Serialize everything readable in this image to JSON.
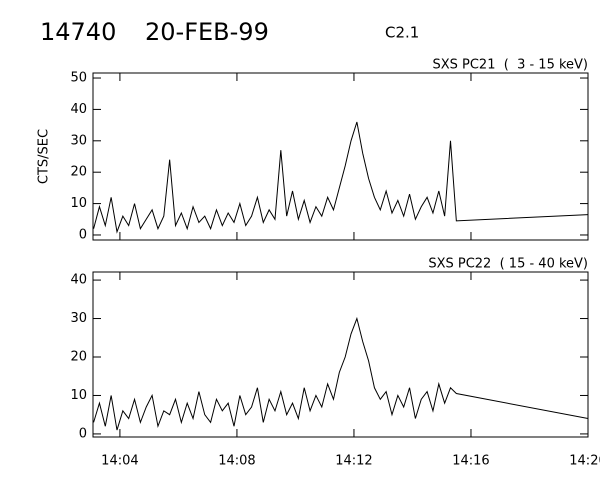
{
  "header": {
    "id": "14740",
    "date": "20-FEB-99",
    "class": "C2.1"
  },
  "chart_data": [
    {
      "type": "line",
      "title": "SXS PC21  (  3 - 15 keV)",
      "ylabel": "CTS/SEC",
      "color": "#000000",
      "x": [
        3.1,
        3.3,
        3.5,
        3.7,
        3.9,
        4.1,
        4.3,
        4.5,
        4.7,
        4.9,
        5.1,
        5.3,
        5.5,
        5.7,
        5.9,
        6.1,
        6.3,
        6.5,
        6.7,
        6.9,
        7.1,
        7.3,
        7.5,
        7.7,
        7.9,
        8.1,
        8.3,
        8.5,
        8.7,
        8.9,
        9.1,
        9.3,
        9.5,
        9.7,
        9.9,
        10.1,
        10.3,
        10.5,
        10.7,
        10.9,
        11.1,
        11.3,
        11.5,
        11.7,
        11.9,
        12.1,
        12.3,
        12.5,
        12.7,
        12.9,
        13.1,
        13.3,
        13.5,
        13.7,
        13.9,
        14.1,
        14.3,
        14.5,
        14.7,
        14.9,
        15.1,
        15.3,
        15.5,
        20
      ],
      "values": [
        2,
        9,
        3,
        12,
        1,
        6,
        3,
        10,
        2,
        5,
        8,
        2,
        6,
        24,
        3,
        7,
        2,
        9,
        4,
        6,
        2,
        8,
        3,
        7,
        4,
        10,
        3,
        6,
        12,
        4,
        8,
        5,
        27,
        6,
        14,
        5,
        11,
        4,
        9,
        6,
        12,
        8,
        15,
        22,
        30,
        36,
        26,
        18,
        12,
        8,
        14,
        7,
        11,
        6,
        13,
        5,
        9,
        12,
        7,
        14,
        6,
        30,
        4.5,
        6.5
      ],
      "xlim": [
        3.08,
        20
      ],
      "ylim": [
        -1.6,
        51.6
      ],
      "xticks": [
        {
          "value": 4,
          "label": "14:04"
        },
        {
          "value": 8,
          "label": "14:08"
        },
        {
          "value": 12,
          "label": "14:12"
        },
        {
          "value": 16,
          "label": "14:16"
        },
        {
          "value": 20,
          "label": "14:20"
        }
      ],
      "yticks": [
        0,
        10,
        20,
        30,
        40,
        50
      ],
      "show_xtick_labels": false
    },
    {
      "type": "line",
      "title": "SXS PC22  ( 15 - 40 keV)",
      "color": "#000000",
      "x": [
        3.1,
        3.3,
        3.5,
        3.7,
        3.9,
        4.1,
        4.3,
        4.5,
        4.7,
        4.9,
        5.1,
        5.3,
        5.5,
        5.7,
        5.9,
        6.1,
        6.3,
        6.5,
        6.7,
        6.9,
        7.1,
        7.3,
        7.5,
        7.7,
        7.9,
        8.1,
        8.3,
        8.5,
        8.7,
        8.9,
        9.1,
        9.3,
        9.5,
        9.7,
        9.9,
        10.1,
        10.3,
        10.5,
        10.7,
        10.9,
        11.1,
        11.3,
        11.5,
        11.7,
        11.9,
        12.1,
        12.3,
        12.5,
        12.7,
        12.9,
        13.1,
        13.3,
        13.5,
        13.7,
        13.9,
        14.1,
        14.3,
        14.5,
        14.7,
        14.9,
        15.1,
        15.3,
        15.5,
        20
      ],
      "values": [
        3,
        8,
        2,
        10,
        1,
        6,
        4,
        9,
        3,
        7,
        10,
        2,
        6,
        5,
        9,
        3,
        8,
        4,
        11,
        5,
        3,
        9,
        6,
        8,
        2,
        10,
        5,
        7,
        12,
        3,
        9,
        6,
        11,
        5,
        8,
        4,
        12,
        6,
        10,
        7,
        13,
        9,
        16,
        20,
        26,
        30,
        24,
        19,
        12,
        9,
        11,
        5,
        10,
        7,
        12,
        4,
        9,
        11,
        6,
        13,
        8,
        12,
        10.5,
        4
      ],
      "xlim": [
        3.08,
        20
      ],
      "ylim": [
        -0.8,
        42.1
      ],
      "xticks": [
        {
          "value": 4,
          "label": "14:04"
        },
        {
          "value": 8,
          "label": "14:08"
        },
        {
          "value": 12,
          "label": "14:12"
        },
        {
          "value": 16,
          "label": "14:16"
        },
        {
          "value": 20,
          "label": "14:20"
        }
      ],
      "yticks": [
        0,
        10,
        20,
        30,
        40
      ],
      "show_xtick_labels": true
    }
  ]
}
